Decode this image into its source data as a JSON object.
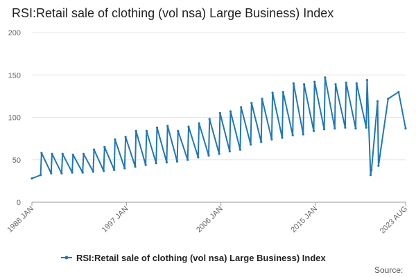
{
  "chart_data": {
    "type": "line",
    "title": "RSI:Retail sale of clothing (vol nsa) Large Business) Index",
    "xlabel": "",
    "ylabel": "",
    "ylim": [
      0,
      200
    ],
    "yticks": [
      0,
      50,
      100,
      150,
      200
    ],
    "x_tick_labels": [
      "1988 JAN",
      "1997 JAN",
      "2006 JAN",
      "2015 JAN",
      "2023 AUG"
    ],
    "grid": "horizontal",
    "legend": "bottom",
    "source_label": "Source:",
    "color": "#1f77b4",
    "series": [
      {
        "name": "RSI:Retail sale of clothing (vol nsa) Large Business) Index",
        "x": [
          "1988 JAN",
          "1988 NOV",
          "1988 DEC",
          "1989 NOV",
          "1989 DEC",
          "1990 NOV",
          "1990 DEC",
          "1991 NOV",
          "1991 DEC",
          "1992 NOV",
          "1992 DEC",
          "1993 NOV",
          "1993 DEC",
          "1994 NOV",
          "1994 DEC",
          "1995 NOV",
          "1995 DEC",
          "1996 NOV",
          "1996 DEC",
          "1997 NOV",
          "1997 DEC",
          "1998 NOV",
          "1998 DEC",
          "1999 NOV",
          "1999 DEC",
          "2000 NOV",
          "2000 DEC",
          "2001 NOV",
          "2001 DEC",
          "2002 NOV",
          "2002 DEC",
          "2003 NOV",
          "2003 DEC",
          "2004 NOV",
          "2004 DEC",
          "2005 NOV",
          "2005 DEC",
          "2006 NOV",
          "2006 DEC",
          "2007 NOV",
          "2007 DEC",
          "2008 NOV",
          "2008 DEC",
          "2009 NOV",
          "2009 DEC",
          "2010 NOV",
          "2010 DEC",
          "2011 NOV",
          "2011 DEC",
          "2012 NOV",
          "2012 DEC",
          "2013 NOV",
          "2013 DEC",
          "2014 NOV",
          "2014 DEC",
          "2015 NOV",
          "2015 DEC",
          "2016 NOV",
          "2016 DEC",
          "2017 NOV",
          "2017 DEC",
          "2018 NOV",
          "2018 DEC",
          "2019 NOV",
          "2019 DEC",
          "2020 APR",
          "2020 MAY",
          "2020 DEC",
          "2021 JAN",
          "2021 DEC",
          "2022 DEC",
          "2023 AUG"
        ],
        "values": [
          28,
          32,
          58,
          34,
          57,
          34,
          57,
          35,
          56,
          35,
          57,
          36,
          62,
          37,
          65,
          38,
          74,
          40,
          77,
          42,
          84,
          44,
          84,
          46,
          88,
          47,
          90,
          48,
          84,
          50,
          89,
          53,
          93,
          55,
          98,
          57,
          105,
          60,
          107,
          62,
          112,
          68,
          117,
          71,
          122,
          74,
          129,
          76,
          130,
          79,
          140,
          80,
          139,
          84,
          142,
          86,
          147,
          87,
          139,
          88,
          141,
          87,
          140,
          88,
          144,
          32,
          38,
          119,
          43,
          122,
          130,
          87
        ]
      }
    ]
  }
}
